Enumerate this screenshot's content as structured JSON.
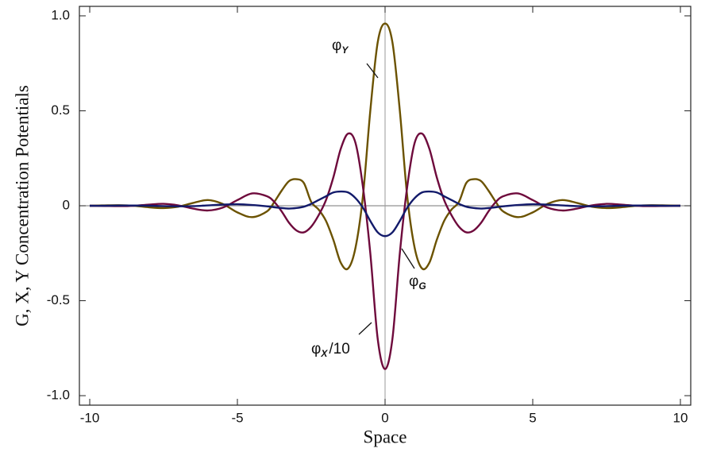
{
  "chart_data": {
    "type": "line",
    "xlabel": "Space",
    "ylabel": "G, X, Y Concentration Potentials",
    "x": [
      -10,
      -9.5,
      -9,
      -8.5,
      -8,
      -7.5,
      -7,
      -6.5,
      -6,
      -5.5,
      -5,
      -4.5,
      -4,
      -3.75,
      -3.5,
      -3.25,
      -3,
      -2.75,
      -2.5,
      -2.25,
      -2,
      -1.75,
      -1.5,
      -1.25,
      -1,
      -0.75,
      -0.5,
      -0.25,
      0,
      0.25,
      0.5,
      0.75,
      1,
      1.25,
      1.5,
      1.75,
      2,
      2.25,
      2.5,
      2.75,
      3,
      3.25,
      3.5,
      3.75,
      4,
      4.5,
      5,
      5.5,
      6,
      6.5,
      7,
      7.5,
      8,
      8.5,
      9,
      9.5,
      10
    ],
    "series": [
      {
        "color": "#6b5200",
        "values": [
          0,
          0.002,
          0.003,
          0,
          -0.008,
          -0.012,
          -0.005,
          0.015,
          0.03,
          0.01,
          -0.035,
          -0.06,
          -0.03,
          0.02,
          0.08,
          0.13,
          0.14,
          0.12,
          0.02,
          -0.02,
          -0.08,
          -0.18,
          -0.3,
          -0.33,
          -0.22,
          0.05,
          0.5,
          0.86,
          0.96,
          0.86,
          0.5,
          0.05,
          -0.22,
          -0.33,
          -0.3,
          -0.18,
          -0.08,
          -0.02,
          0.02,
          0.12,
          0.14,
          0.13,
          0.08,
          0.02,
          -0.03,
          -0.06,
          -0.035,
          0.01,
          0.03,
          0.015,
          -0.005,
          -0.012,
          -0.008,
          0,
          0.003,
          0.002,
          0
        ]
      },
      {
        "color": "#6e0a3c",
        "values": [
          0,
          -0.001,
          -0.002,
          0,
          0.006,
          0.01,
          0.002,
          -0.015,
          -0.025,
          -0.01,
          0.03,
          0.065,
          0.05,
          0.02,
          -0.03,
          -0.09,
          -0.13,
          -0.14,
          -0.11,
          -0.05,
          0.03,
          0.15,
          0.3,
          0.38,
          0.33,
          0.1,
          -0.25,
          -0.7,
          -0.86,
          -0.7,
          -0.25,
          0.1,
          0.33,
          0.38,
          0.3,
          0.15,
          0.03,
          -0.05,
          -0.11,
          -0.14,
          -0.13,
          -0.09,
          -0.03,
          0.02,
          0.05,
          0.065,
          0.03,
          -0.01,
          -0.025,
          -0.015,
          0.002,
          0.01,
          0.006,
          0,
          -0.002,
          -0.001,
          0
        ]
      },
      {
        "color": "#121a6a",
        "values": [
          0,
          0,
          0.001,
          0.001,
          0,
          -0.002,
          -0.003,
          -0.002,
          0.002,
          0.006,
          0.008,
          0.004,
          -0.003,
          -0.008,
          -0.012,
          -0.015,
          -0.012,
          -0.005,
          0.01,
          0.03,
          0.05,
          0.07,
          0.075,
          0.07,
          0.04,
          -0.01,
          -0.08,
          -0.14,
          -0.16,
          -0.14,
          -0.08,
          -0.01,
          0.04,
          0.07,
          0.075,
          0.07,
          0.05,
          0.03,
          0.01,
          -0.005,
          -0.012,
          -0.015,
          -0.012,
          -0.008,
          -0.003,
          0.004,
          0.008,
          0.006,
          0.002,
          -0.002,
          -0.003,
          -0.002,
          0,
          0.001,
          0.001,
          0,
          0
        ]
      }
    ],
    "annotations": [
      {
        "text": "φ",
        "sub": "Y"
      },
      {
        "text": "φ",
        "sub": "G"
      },
      {
        "text": "φ",
        "sub": "X",
        "suffix": "/10"
      }
    ],
    "xlim": [
      -10.35,
      10.35
    ],
    "ylim": [
      -1.05,
      1.05
    ],
    "xticks": [
      -10,
      -5,
      0,
      5,
      10
    ],
    "yticks": [
      {
        "value": -1,
        "label": "-1.0"
      },
      -0.5,
      0,
      0.5,
      {
        "value": 1,
        "label": "1.0"
      }
    ]
  }
}
